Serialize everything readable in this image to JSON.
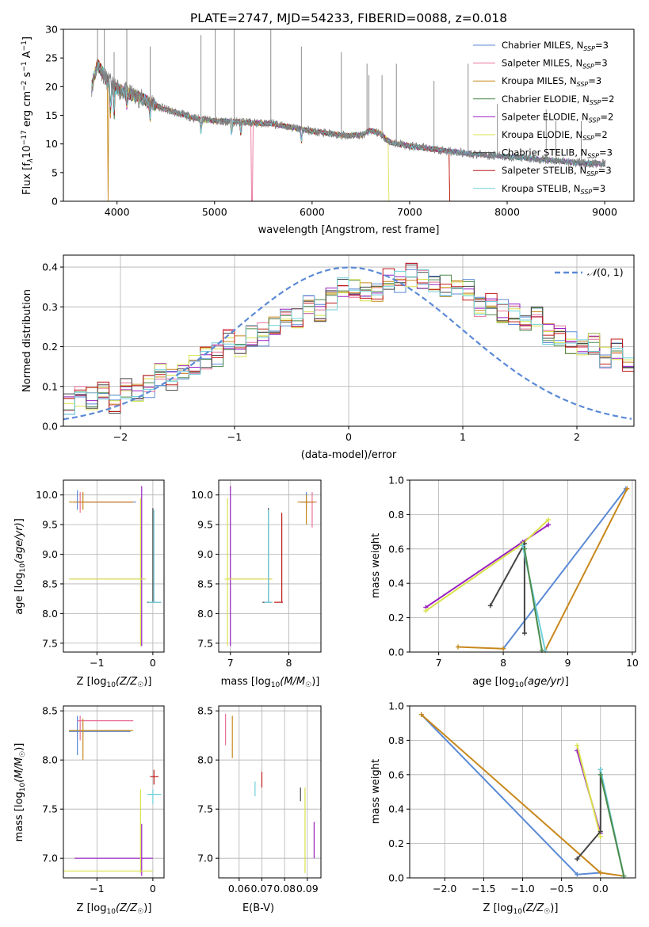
{
  "title": "PLATE=2747, MJD=54233, FIBERID=0088, z=0.018",
  "models": [
    {
      "name": "Chabrier MILES",
      "nssp": "3",
      "color": "#5b8ad6"
    },
    {
      "name": "Salpeter MILES",
      "nssp": "3",
      "color": "#e8709a"
    },
    {
      "name": "Kroupa MILES",
      "nssp": "3",
      "color": "#c8881c"
    },
    {
      "name": "Chabrier ELODIE",
      "nssp": "2",
      "color": "#4b8a4b"
    },
    {
      "name": "Salpeter ELODIE",
      "nssp": "2",
      "color": "#9b20c2"
    },
    {
      "name": "Kroupa ELODIE",
      "nssp": "2",
      "color": "#d8e24a"
    },
    {
      "name": "Chabrier STELIB",
      "nssp": "3",
      "color": "#444444"
    },
    {
      "name": "Salpeter STELIB",
      "nssp": "3",
      "color": "#c01818"
    },
    {
      "name": "Kroupa STELIB",
      "nssp": "3",
      "color": "#6fd0dc"
    }
  ],
  "labels": {
    "spec_x": "wavelength [Angstrom, rest frame]",
    "spec_y": "Flux [f",
    "hist_x": "(data-model)/error",
    "hist_y": "Normed distribution",
    "hist_legend": "(0, 1)",
    "age_y": "age  [log",
    "Z_x": "Z [log",
    "mass_x": "mass [log",
    "mass_y": "mass [log",
    "mw_y": "mass weight",
    "age_x": "age  [log",
    "ebv_x": "E(B-V)"
  },
  "chart_data": [
    {
      "id": "spectrum",
      "type": "line",
      "title": "PLATE=2747, MJD=54233, FIBERID=0088, z=0.018",
      "xlabel": "wavelength [Angstrom, rest frame]",
      "ylabel": "Flux [fλ10^-17 erg cm^-2 s^-1 A^-1]",
      "xlim": [
        3450,
        9300
      ],
      "ylim": [
        0,
        30
      ],
      "xticks": [
        4000,
        5000,
        6000,
        7000,
        8000,
        9000
      ],
      "yticks": [
        0,
        5,
        10,
        15,
        20,
        25,
        30
      ],
      "continuum": {
        "x": [
          3740,
          3800,
          3900,
          4000,
          4100,
          4300,
          4500,
          4800,
          5000,
          5300,
          5600,
          6000,
          6300,
          6500,
          6600,
          6700,
          6800,
          7000,
          7300,
          7600,
          8000,
          8400,
          8800,
          9000
        ],
        "y": [
          20,
          24,
          21,
          19.5,
          19,
          17.5,
          16,
          14.5,
          14,
          13.8,
          13.5,
          12.2,
          11.5,
          11.5,
          12.4,
          11.8,
          10.3,
          9.6,
          9.0,
          8.3,
          7.8,
          7.2,
          6.6,
          6.5
        ]
      },
      "emission_lines": [
        [
          3800,
          30
        ],
        [
          3870,
          30
        ],
        [
          3970,
          26
        ],
        [
          4100,
          30
        ],
        [
          4340,
          27
        ],
        [
          4861,
          29
        ],
        [
          5007,
          30
        ],
        [
          5200,
          30
        ],
        [
          5577,
          30
        ],
        [
          5890,
          27
        ],
        [
          6300,
          26
        ],
        [
          6563,
          24
        ],
        [
          6583,
          22
        ],
        [
          6717,
          22
        ],
        [
          6864,
          24
        ],
        [
          7250,
          21
        ],
        [
          7600,
          24
        ],
        [
          7900,
          17
        ],
        [
          8400,
          16
        ],
        [
          8500,
          14
        ],
        [
          8760,
          14
        ]
      ],
      "legend": "upper right"
    },
    {
      "id": "residuals",
      "type": "step",
      "xlabel": "(data-model)/error",
      "ylabel": "Normed distribution",
      "xlim": [
        -2.5,
        2.5
      ],
      "ylim": [
        0,
        0.43
      ],
      "xticks": [
        -2,
        -1,
        0,
        1,
        2
      ],
      "yticks": [
        0.0,
        0.1,
        0.2,
        0.3,
        0.4
      ],
      "bins": {
        "start": -2.5,
        "width": 0.1
      },
      "base": [
        0.06,
        0.08,
        0.07,
        0.09,
        0.06,
        0.09,
        0.09,
        0.1,
        0.13,
        0.12,
        0.14,
        0.16,
        0.17,
        0.18,
        0.22,
        0.2,
        0.23,
        0.23,
        0.26,
        0.27,
        0.27,
        0.31,
        0.29,
        0.32,
        0.35,
        0.34,
        0.34,
        0.33,
        0.37,
        0.36,
        0.38,
        0.37,
        0.36,
        0.35,
        0.35,
        0.34,
        0.3,
        0.31,
        0.29,
        0.28,
        0.26,
        0.27,
        0.23,
        0.23,
        0.21,
        0.2,
        0.21,
        0.17,
        0.19,
        0.16,
        0.16,
        0.15,
        0.14,
        0.13,
        0.11,
        0.1,
        0.1,
        0.09,
        0.08,
        0.09,
        0.07,
        0.08,
        0.07,
        0.07,
        0.06,
        0.06,
        0.05,
        0.04,
        0.05,
        0.03,
        0.02
      ],
      "normal": {
        "label": "N(0,1)",
        "mu": 0,
        "sigma": 1
      },
      "legend": "upper right"
    },
    {
      "id": "age_vs_Z",
      "type": "errorbar",
      "xlabel": "Z [log10(Z/Z☉)]",
      "ylabel": "age  [log10(age/yr)]",
      "xlim": [
        -1.6,
        0.2
      ],
      "ylim": [
        7.35,
        10.25
      ],
      "xticks": [
        -1,
        0
      ],
      "yticks": [
        7.5,
        8.0,
        8.5,
        9.0,
        9.5,
        10.0
      ],
      "points": [
        {
          "m": 0,
          "x": -1.35,
          "y": 9.88,
          "xe": [
            -1.4,
            -0.3
          ],
          "ye": [
            9.75,
            10.08
          ]
        },
        {
          "m": 1,
          "x": -1.3,
          "y": 9.88,
          "xe": [
            -1.35,
            -0.35
          ],
          "ye": [
            9.7,
            10.05
          ]
        },
        {
          "m": 2,
          "x": -1.25,
          "y": 9.88,
          "xe": [
            -1.5,
            -0.35
          ],
          "ye": [
            9.75,
            10.05
          ]
        },
        {
          "m": 4,
          "x": -0.2,
          "y": 8.58,
          "xe": [
            -1.5,
            -0.15
          ],
          "ye": [
            7.45,
            10.15
          ]
        },
        {
          "m": 5,
          "x": -0.22,
          "y": 8.58,
          "xe": [
            -1.5,
            -0.12
          ],
          "ye": [
            7.45,
            9.95
          ]
        },
        {
          "m": 6,
          "x": 0.0,
          "y": 8.19,
          "xe": [
            -0.1,
            0.15
          ],
          "ye": [
            8.19,
            9.78
          ]
        },
        {
          "m": 8,
          "x": 0.02,
          "y": 8.19,
          "xe": [
            -0.08,
            0.15
          ],
          "ye": [
            8.19,
            9.75
          ]
        }
      ]
    },
    {
      "id": "age_vs_mass",
      "type": "errorbar",
      "xlabel": "mass [log10(M/M☉)]",
      "xlim": [
        6.8,
        8.55
      ],
      "ylim": [
        7.35,
        10.25
      ],
      "xticks": [
        7,
        8
      ],
      "yticks": [
        7.5,
        8.0,
        8.5,
        9.0,
        9.5,
        10.0
      ],
      "points": [
        {
          "m": 4,
          "x": 7.0,
          "y": 8.58,
          "xe": [
            6.95,
            7.7
          ],
          "ye": [
            7.45,
            10.15
          ]
        },
        {
          "m": 5,
          "x": 6.95,
          "y": 8.58,
          "xe": [
            6.9,
            7.72
          ],
          "ye": [
            7.45,
            9.95
          ]
        },
        {
          "m": 6,
          "x": 7.65,
          "y": 8.19,
          "xe": [
            7.55,
            7.7
          ],
          "ye": [
            8.19,
            9.78
          ]
        },
        {
          "m": 8,
          "x": 7.65,
          "y": 8.19,
          "xe": [
            7.58,
            7.72
          ],
          "ye": [
            8.19,
            9.75
          ]
        },
        {
          "m": 7,
          "x": 7.88,
          "y": 8.19,
          "xe": [
            7.75,
            7.9
          ],
          "ye": [
            8.19,
            9.7
          ]
        },
        {
          "m": 0,
          "x": 8.3,
          "y": 9.88,
          "xe": [
            8.2,
            8.45
          ],
          "ye": [
            9.75,
            10.05
          ]
        },
        {
          "m": 1,
          "x": 8.4,
          "y": 9.88,
          "xe": [
            8.25,
            8.48
          ],
          "ye": [
            9.45,
            10.05
          ]
        },
        {
          "m": 2,
          "x": 8.3,
          "y": 9.88,
          "xe": [
            8.15,
            8.45
          ],
          "ye": [
            9.5,
            10.0
          ]
        }
      ]
    },
    {
      "id": "massweight_vs_age",
      "type": "line",
      "xlabel": "age  [log10(age/yr)]",
      "ylabel": "mass weight",
      "xlim": [
        6.55,
        10.05
      ],
      "ylim": [
        0,
        1
      ],
      "xticks": [
        7,
        8,
        9,
        10
      ],
      "yticks": [
        0.0,
        0.2,
        0.4,
        0.6,
        0.8,
        1.0
      ],
      "series": [
        {
          "m": 0,
          "x": [
            8.0,
            9.9
          ],
          "y": [
            0.02,
            0.95
          ]
        },
        {
          "m": 2,
          "x": [
            7.3,
            8.0
          ],
          "y": [
            0.03,
            0.02
          ]
        },
        {
          "m": 2,
          "x": [
            8.65,
            9.92
          ],
          "y": [
            0.01,
            0.95
          ]
        },
        {
          "m": 4,
          "x": [
            6.8,
            8.3,
            8.7
          ],
          "y": [
            0.26,
            0.64,
            0.74
          ]
        },
        {
          "m": 5,
          "x": [
            6.8,
            8.3,
            8.7
          ],
          "y": [
            0.24,
            0.63,
            0.77
          ]
        },
        {
          "m": 6,
          "x": [
            7.8,
            8.33
          ],
          "y": [
            0.27,
            0.63
          ]
        },
        {
          "m": 6,
          "x": [
            8.33,
            8.33
          ],
          "y": [
            0.11,
            0.63
          ]
        },
        {
          "m": 8,
          "x": [
            8.3,
            8.65
          ],
          "y": [
            0.62,
            0.01
          ]
        },
        {
          "m": 3,
          "x": [
            8.33,
            8.6
          ],
          "y": [
            0.6,
            0.01
          ]
        }
      ]
    },
    {
      "id": "mass_vs_Z",
      "type": "errorbar",
      "xlabel": "Z [log10(Z/Z☉)]",
      "ylabel": "mass [log10(M/M☉)]",
      "xlim": [
        -1.6,
        0.2
      ],
      "ylim": [
        6.8,
        8.55
      ],
      "xticks": [
        -1,
        0
      ],
      "yticks": [
        7.0,
        7.5,
        8.0,
        8.5
      ],
      "points": [
        {
          "m": 0,
          "x": -1.35,
          "y": 8.29,
          "xe": [
            -1.5,
            -0.4
          ],
          "ye": [
            8.05,
            8.45
          ]
        },
        {
          "m": 1,
          "x": -1.3,
          "y": 8.4,
          "xe": [
            -1.35,
            -0.35
          ],
          "ye": [
            8.2,
            8.45
          ]
        },
        {
          "m": 2,
          "x": -1.25,
          "y": 8.3,
          "xe": [
            -1.5,
            -0.35
          ],
          "ye": [
            8.0,
            8.42
          ]
        },
        {
          "m": 4,
          "x": -0.2,
          "y": 7.0,
          "xe": [
            -1.4,
            0.0
          ],
          "ye": [
            6.82,
            7.35
          ]
        },
        {
          "m": 5,
          "x": -0.22,
          "y": 6.87,
          "xe": [
            -1.6,
            0.0
          ],
          "ye": [
            6.85,
            7.7
          ]
        },
        {
          "m": 7,
          "x": 0.02,
          "y": 7.83,
          "xe": [
            -0.05,
            0.1
          ],
          "ye": [
            7.75,
            7.9
          ]
        },
        {
          "m": 8,
          "x": 0.0,
          "y": 7.65,
          "xe": [
            -0.1,
            0.15
          ],
          "ye": [
            7.55,
            7.7
          ]
        }
      ]
    },
    {
      "id": "mass_vs_ebv",
      "type": "errorbar",
      "xlabel": "E(B-V)",
      "xlim": [
        0.051,
        0.096
      ],
      "ylim": [
        6.8,
        8.55
      ],
      "xticks": [
        0.06,
        0.07,
        0.08,
        0.09
      ],
      "yticks": [
        7.0,
        7.5,
        8.0,
        8.5
      ],
      "points": [
        {
          "m": 1,
          "x": 0.054,
          "y": 8.3,
          "ye": [
            8.15,
            8.47
          ]
        },
        {
          "m": 2,
          "x": 0.057,
          "y": 8.2,
          "ye": [
            8.02,
            8.45
          ]
        },
        {
          "m": 8,
          "x": 0.067,
          "y": 7.7,
          "ye": [
            7.63,
            7.78
          ]
        },
        {
          "m": 7,
          "x": 0.07,
          "y": 7.8,
          "ye": [
            7.72,
            7.88
          ]
        },
        {
          "m": 6,
          "x": 0.087,
          "y": 7.6,
          "ye": [
            7.58,
            7.72
          ]
        },
        {
          "m": 5,
          "x": 0.089,
          "y": 7.2,
          "ye": [
            6.85,
            7.72
          ]
        },
        {
          "m": 4,
          "x": 0.093,
          "y": 7.1,
          "ye": [
            7.0,
            7.37
          ]
        }
      ]
    },
    {
      "id": "massweight_vs_Z",
      "type": "line",
      "xlabel": "Z [log10(Z/Z☉)]",
      "ylabel": "mass weight",
      "xlim": [
        -2.45,
        0.45
      ],
      "ylim": [
        0,
        1
      ],
      "xticks": [
        -2.0,
        -1.5,
        -1.0,
        -0.5,
        0.0
      ],
      "yticks": [
        0.0,
        0.2,
        0.4,
        0.6,
        0.8,
        1.0
      ],
      "series": [
        {
          "m": 0,
          "x": [
            -2.3,
            -0.3,
            0.0
          ],
          "y": [
            0.95,
            0.02,
            0.03
          ]
        },
        {
          "m": 2,
          "x": [
            -2.3,
            0.0,
            0.3
          ],
          "y": [
            0.95,
            0.03,
            0.01
          ]
        },
        {
          "m": 4,
          "x": [
            -0.3,
            0.0
          ],
          "y": [
            0.74,
            0.26
          ]
        },
        {
          "m": 5,
          "x": [
            -0.3,
            0.0
          ],
          "y": [
            0.77,
            0.24
          ]
        },
        {
          "m": 6,
          "x": [
            -0.3,
            0.0,
            0.0
          ],
          "y": [
            0.11,
            0.27,
            0.63
          ]
        },
        {
          "m": 8,
          "x": [
            0.0,
            0.3
          ],
          "y": [
            0.63,
            0.01
          ]
        },
        {
          "m": 3,
          "x": [
            0.0,
            0.3
          ],
          "y": [
            0.6,
            0.01
          ]
        }
      ]
    }
  ]
}
